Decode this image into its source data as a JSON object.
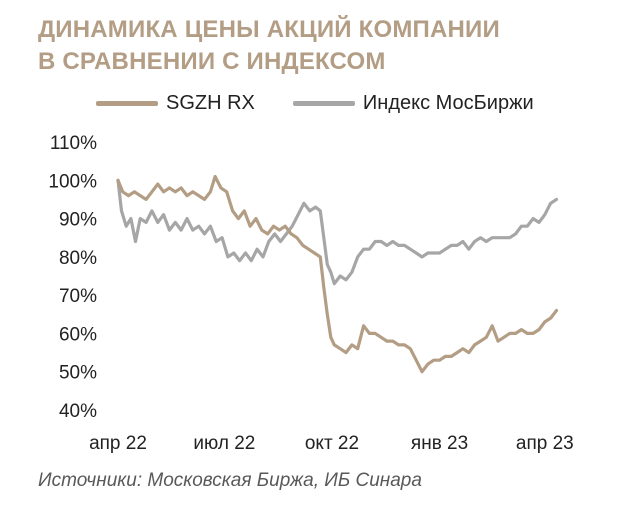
{
  "title_lines": [
    "ДИНАМИКА ЦЕНЫ АКЦИЙ КОМПАНИИ",
    "В СРАВНЕНИИ С ИНДЕКСОМ"
  ],
  "source": "Источники: Московская Биржа, ИБ Синара",
  "colors": {
    "title": "#b39d84",
    "sgzh": "#b39d84",
    "index": "#a6a6a6"
  },
  "chart_data": {
    "type": "line",
    "title": "ДИНАМИКА ЦЕНЫ АКЦИЙ КОМПАНИИ В СРАВНЕНИИ С ИНДЕКСОМ",
    "xlabel": "",
    "ylabel": "",
    "ylim": [
      40,
      110
    ],
    "yticks": [
      40,
      50,
      60,
      70,
      80,
      90,
      100,
      110
    ],
    "ytick_labels": [
      "40%",
      "50%",
      "60%",
      "70%",
      "80%",
      "90%",
      "100%",
      "110%"
    ],
    "xlim": [
      "2022-04-01",
      "2023-04-14"
    ],
    "xticks": [
      "2022-04-01",
      "2022-07-01",
      "2022-10-01",
      "2023-01-01",
      "2023-04-01"
    ],
    "xtick_labels": [
      "апр 22",
      "июл 22",
      "окт 22",
      "янв 23",
      "апр 23"
    ],
    "grid": false,
    "legend_position": "top",
    "series": [
      {
        "name": "SGZH RX",
        "color": "#b39d84",
        "points": [
          [
            "2022-04-01",
            100
          ],
          [
            "2022-04-05",
            97
          ],
          [
            "2022-04-10",
            96
          ],
          [
            "2022-04-15",
            97
          ],
          [
            "2022-04-20",
            96
          ],
          [
            "2022-04-25",
            95
          ],
          [
            "2022-04-30",
            97
          ],
          [
            "2022-05-05",
            99
          ],
          [
            "2022-05-10",
            97
          ],
          [
            "2022-05-15",
            98
          ],
          [
            "2022-05-20",
            97
          ],
          [
            "2022-05-25",
            98
          ],
          [
            "2022-05-30",
            96
          ],
          [
            "2022-06-04",
            97
          ],
          [
            "2022-06-09",
            96
          ],
          [
            "2022-06-14",
            95
          ],
          [
            "2022-06-19",
            97
          ],
          [
            "2022-06-23",
            101
          ],
          [
            "2022-06-28",
            98
          ],
          [
            "2022-07-03",
            97
          ],
          [
            "2022-07-08",
            92
          ],
          [
            "2022-07-13",
            90
          ],
          [
            "2022-07-18",
            92
          ],
          [
            "2022-07-23",
            88
          ],
          [
            "2022-07-28",
            90
          ],
          [
            "2022-08-02",
            87
          ],
          [
            "2022-08-07",
            86
          ],
          [
            "2022-08-12",
            88
          ],
          [
            "2022-08-17",
            87
          ],
          [
            "2022-08-22",
            88
          ],
          [
            "2022-08-27",
            86
          ],
          [
            "2022-09-01",
            85
          ],
          [
            "2022-09-06",
            83
          ],
          [
            "2022-09-11",
            82
          ],
          [
            "2022-09-16",
            81
          ],
          [
            "2022-09-21",
            80
          ],
          [
            "2022-09-24",
            72
          ],
          [
            "2022-09-27",
            65
          ],
          [
            "2022-09-30",
            59
          ],
          [
            "2022-10-03",
            57
          ],
          [
            "2022-10-08",
            56
          ],
          [
            "2022-10-13",
            55
          ],
          [
            "2022-10-18",
            57
          ],
          [
            "2022-10-23",
            56
          ],
          [
            "2022-10-28",
            62
          ],
          [
            "2022-11-02",
            60
          ],
          [
            "2022-11-07",
            60
          ],
          [
            "2022-11-12",
            59
          ],
          [
            "2022-11-17",
            58
          ],
          [
            "2022-11-22",
            58
          ],
          [
            "2022-11-27",
            57
          ],
          [
            "2022-12-02",
            57
          ],
          [
            "2022-12-07",
            56
          ],
          [
            "2022-12-12",
            53
          ],
          [
            "2022-12-17",
            50
          ],
          [
            "2022-12-22",
            52
          ],
          [
            "2022-12-27",
            53
          ],
          [
            "2023-01-01",
            53
          ],
          [
            "2023-01-06",
            54
          ],
          [
            "2023-01-11",
            54
          ],
          [
            "2023-01-16",
            55
          ],
          [
            "2023-01-21",
            56
          ],
          [
            "2023-01-26",
            55
          ],
          [
            "2023-01-31",
            57
          ],
          [
            "2023-02-05",
            58
          ],
          [
            "2023-02-10",
            59
          ],
          [
            "2023-02-15",
            62
          ],
          [
            "2023-02-20",
            58
          ],
          [
            "2023-02-25",
            59
          ],
          [
            "2023-03-02",
            60
          ],
          [
            "2023-03-07",
            60
          ],
          [
            "2023-03-12",
            61
          ],
          [
            "2023-03-17",
            60
          ],
          [
            "2023-03-22",
            60
          ],
          [
            "2023-03-27",
            61
          ],
          [
            "2023-04-01",
            63
          ],
          [
            "2023-04-06",
            64
          ],
          [
            "2023-04-11",
            66
          ]
        ]
      },
      {
        "name": "Индекс МосБиржи",
        "color": "#a6a6a6",
        "points": [
          [
            "2022-04-01",
            100
          ],
          [
            "2022-04-04",
            92
          ],
          [
            "2022-04-08",
            88
          ],
          [
            "2022-04-12",
            90
          ],
          [
            "2022-04-16",
            84
          ],
          [
            "2022-04-20",
            90
          ],
          [
            "2022-04-25",
            89
          ],
          [
            "2022-04-30",
            92
          ],
          [
            "2022-05-05",
            89
          ],
          [
            "2022-05-10",
            91
          ],
          [
            "2022-05-15",
            87
          ],
          [
            "2022-05-20",
            89
          ],
          [
            "2022-05-25",
            87
          ],
          [
            "2022-05-30",
            90
          ],
          [
            "2022-06-04",
            87
          ],
          [
            "2022-06-09",
            88
          ],
          [
            "2022-06-14",
            86
          ],
          [
            "2022-06-19",
            88
          ],
          [
            "2022-06-24",
            84
          ],
          [
            "2022-06-29",
            85
          ],
          [
            "2022-07-04",
            80
          ],
          [
            "2022-07-09",
            81
          ],
          [
            "2022-07-14",
            79
          ],
          [
            "2022-07-19",
            81
          ],
          [
            "2022-07-24",
            79
          ],
          [
            "2022-07-29",
            82
          ],
          [
            "2022-08-03",
            80
          ],
          [
            "2022-08-08",
            84
          ],
          [
            "2022-08-13",
            86
          ],
          [
            "2022-08-18",
            84
          ],
          [
            "2022-08-23",
            86
          ],
          [
            "2022-08-28",
            88
          ],
          [
            "2022-09-02",
            91
          ],
          [
            "2022-09-07",
            94
          ],
          [
            "2022-09-12",
            92
          ],
          [
            "2022-09-17",
            93
          ],
          [
            "2022-09-21",
            92
          ],
          [
            "2022-09-24",
            85
          ],
          [
            "2022-09-27",
            78
          ],
          [
            "2022-09-30",
            76
          ],
          [
            "2022-10-03",
            73
          ],
          [
            "2022-10-08",
            75
          ],
          [
            "2022-10-13",
            74
          ],
          [
            "2022-10-18",
            76
          ],
          [
            "2022-10-23",
            80
          ],
          [
            "2022-10-28",
            82
          ],
          [
            "2022-11-02",
            82
          ],
          [
            "2022-11-07",
            84
          ],
          [
            "2022-11-12",
            84
          ],
          [
            "2022-11-17",
            83
          ],
          [
            "2022-11-22",
            84
          ],
          [
            "2022-11-27",
            83
          ],
          [
            "2022-12-02",
            83
          ],
          [
            "2022-12-07",
            82
          ],
          [
            "2022-12-12",
            81
          ],
          [
            "2022-12-17",
            80
          ],
          [
            "2022-12-22",
            81
          ],
          [
            "2022-12-27",
            81
          ],
          [
            "2023-01-01",
            81
          ],
          [
            "2023-01-06",
            82
          ],
          [
            "2023-01-11",
            83
          ],
          [
            "2023-01-16",
            83
          ],
          [
            "2023-01-21",
            84
          ],
          [
            "2023-01-26",
            82
          ],
          [
            "2023-01-31",
            84
          ],
          [
            "2023-02-05",
            85
          ],
          [
            "2023-02-10",
            84
          ],
          [
            "2023-02-15",
            85
          ],
          [
            "2023-02-20",
            85
          ],
          [
            "2023-02-25",
            85
          ],
          [
            "2023-03-02",
            85
          ],
          [
            "2023-03-07",
            86
          ],
          [
            "2023-03-12",
            88
          ],
          [
            "2023-03-17",
            88
          ],
          [
            "2023-03-22",
            90
          ],
          [
            "2023-03-27",
            89
          ],
          [
            "2023-04-01",
            91
          ],
          [
            "2023-04-06",
            94
          ],
          [
            "2023-04-11",
            95
          ]
        ]
      }
    ]
  }
}
